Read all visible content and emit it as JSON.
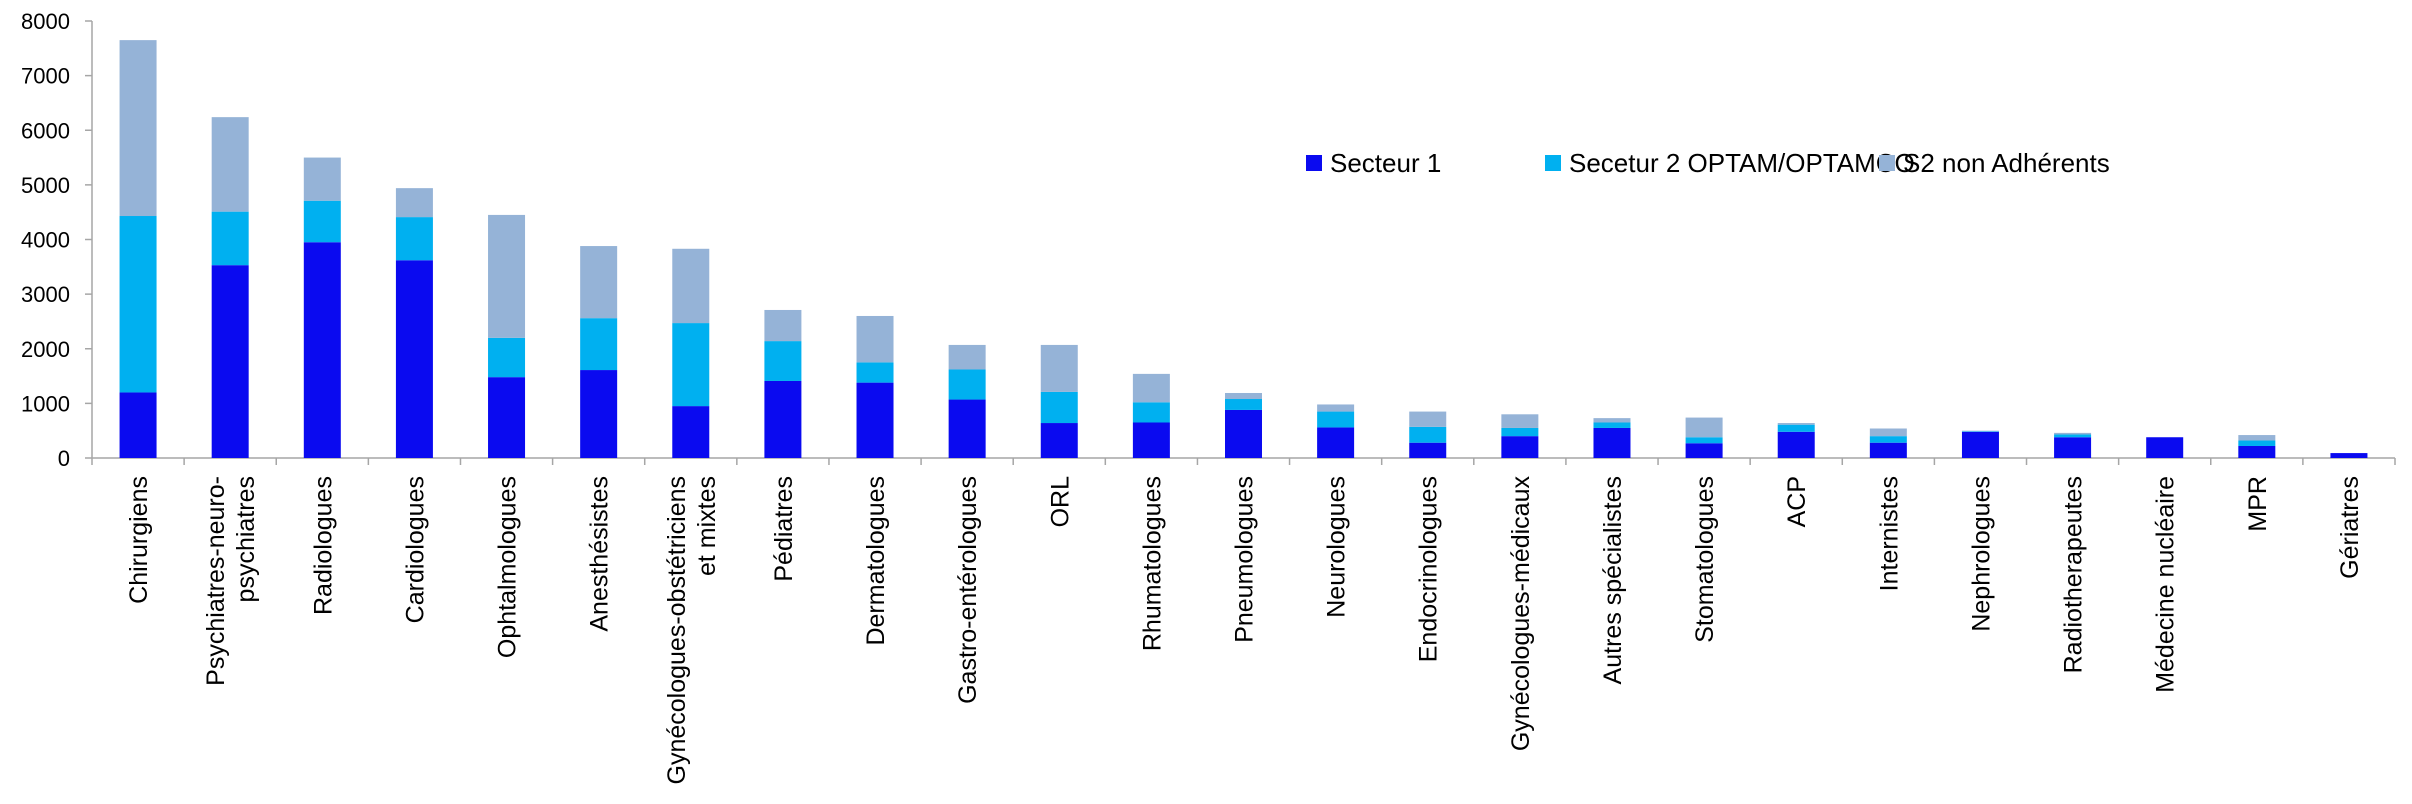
{
  "chart_data": {
    "type": "bar",
    "stacked": true,
    "title": "",
    "xlabel": "",
    "ylabel": "",
    "ylim": [
      0,
      8000
    ],
    "yticks": [
      0,
      1000,
      2000,
      3000,
      4000,
      5000,
      6000,
      7000,
      8000
    ],
    "grid": false,
    "legend_position": "top-right",
    "categories": [
      [
        "Chirurgiens"
      ],
      [
        "Psychiatres-neuro-",
        "psychiatres"
      ],
      [
        "Radiologues"
      ],
      [
        "Cardiologues"
      ],
      [
        "Ophtalmologues"
      ],
      [
        "Anesthésistes"
      ],
      [
        "Gynécologues-obstétriciens",
        "et mixtes"
      ],
      [
        "Pédiatres"
      ],
      [
        "Dermatologues"
      ],
      [
        "Gastro-entérologues"
      ],
      [
        "ORL"
      ],
      [
        "Rhumatologues"
      ],
      [
        "Pneumologues"
      ],
      [
        "Neurologues"
      ],
      [
        "Endocrinologues"
      ],
      [
        "Gynécologues-médicaux"
      ],
      [
        "Autres spécialistes"
      ],
      [
        "Stomatologues"
      ],
      [
        "ACP"
      ],
      [
        "Internistes"
      ],
      [
        "Nephrologues"
      ],
      [
        "Radiotherapeutes"
      ],
      [
        "Médecine nucléaire"
      ],
      [
        "MPR"
      ],
      [
        "Gériatres"
      ]
    ],
    "series": [
      {
        "name": "Secteur 1",
        "color": "#0a0af0",
        "values": [
          1200,
          3530,
          3950,
          3620,
          1480,
          1610,
          950,
          1410,
          1380,
          1070,
          640,
          650,
          880,
          560,
          280,
          400,
          550,
          270,
          480,
          280,
          480,
          380,
          380,
          220,
          90
        ]
      },
      {
        "name": "Secetur 2 OPTAM/OPTAMCO",
        "color": "#00b0f0",
        "values": [
          3230,
          980,
          760,
          790,
          720,
          950,
          1520,
          730,
          370,
          550,
          570,
          370,
          200,
          290,
          290,
          150,
          100,
          110,
          130,
          120,
          10,
          50,
          0,
          100,
          0
        ]
      },
      {
        "name": "S2 non Adhérents",
        "color": "#95b3d7",
        "values": [
          3220,
          1730,
          790,
          530,
          2250,
          1320,
          1360,
          570,
          850,
          450,
          860,
          520,
          110,
          130,
          280,
          250,
          80,
          360,
          30,
          140,
          10,
          30,
          0,
          100,
          0
        ]
      }
    ]
  }
}
